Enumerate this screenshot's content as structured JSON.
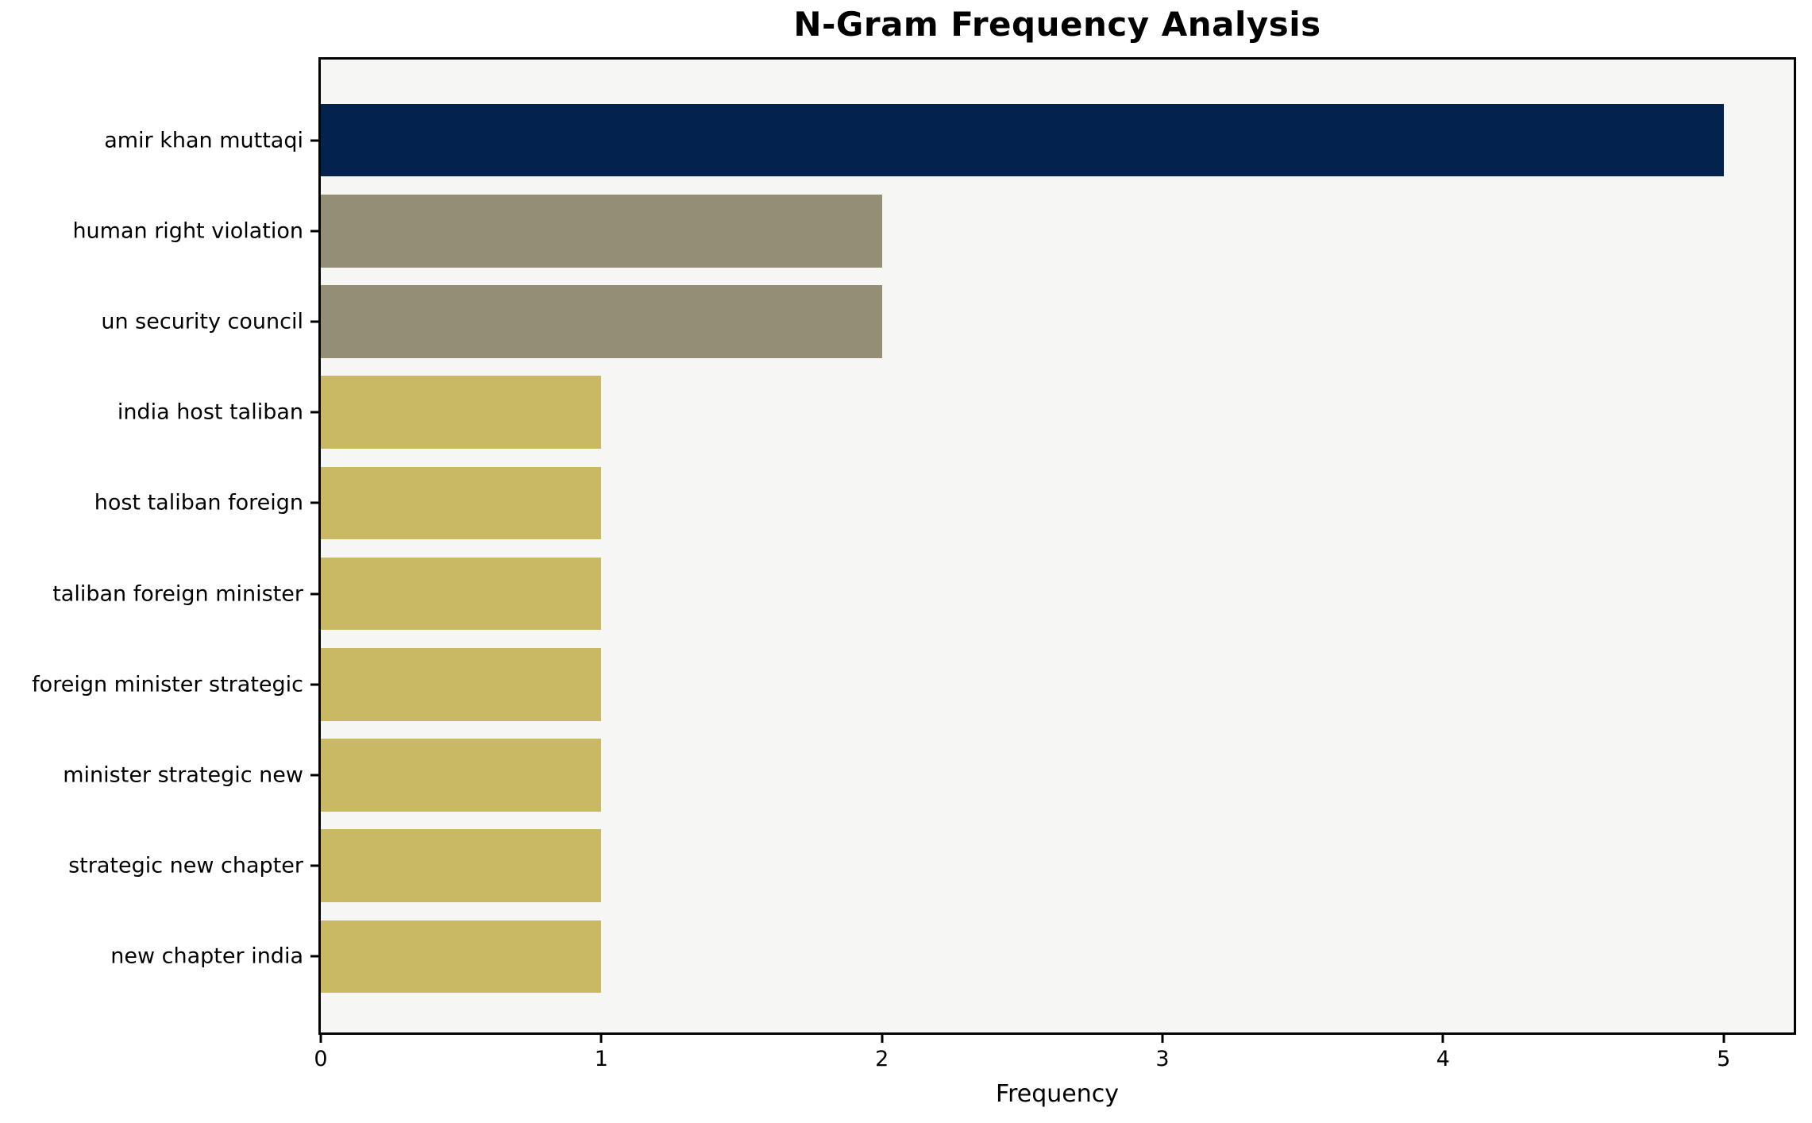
{
  "chart_data": {
    "type": "bar",
    "orientation": "horizontal",
    "title": "N-Gram Frequency Analysis",
    "xlabel": "Frequency",
    "ylabel": "",
    "categories": [
      "amir khan muttaqi",
      "human right violation",
      "un security council",
      "india host taliban",
      "host taliban foreign",
      "taliban foreign minister",
      "foreign minister strategic",
      "minister strategic new",
      "strategic new chapter",
      "new chapter india"
    ],
    "values": [
      5,
      2,
      2,
      1,
      1,
      1,
      1,
      1,
      1,
      1
    ],
    "bar_colors": [
      "#03234e",
      "#948e74",
      "#948e74",
      "#cab964",
      "#cab964",
      "#cab964",
      "#cab964",
      "#cab964",
      "#cab964",
      "#cab964"
    ],
    "xticks": [
      0,
      1,
      2,
      3,
      4,
      5
    ],
    "xlim": [
      0,
      5.25
    ],
    "grid": false,
    "legend_position": "none",
    "plot_background": "#f6f6f4",
    "figure_background": "#ffffff",
    "spine_color": "#000000"
  }
}
